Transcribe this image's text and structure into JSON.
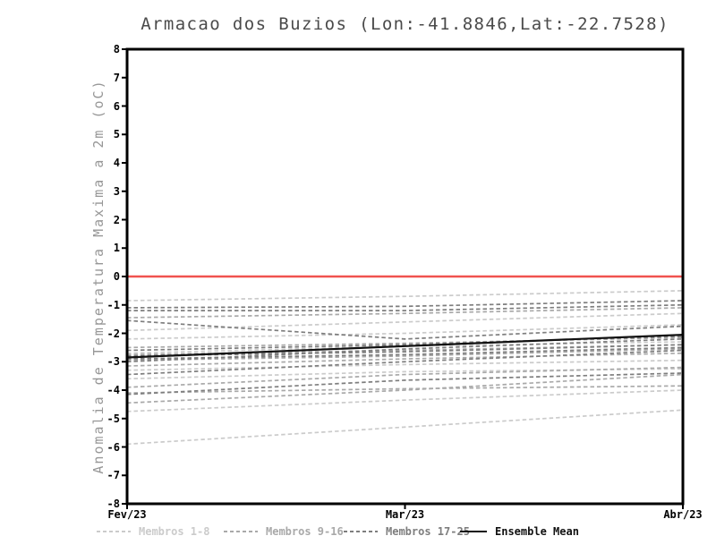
{
  "chart_data": {
    "type": "line",
    "title": "Armacao dos Buzios (Lon:-41.8846,Lat:-22.7528)",
    "ylabel": "Anomalia de Temperatura Maxima a 2m (oC)",
    "ylim": [
      -8,
      8
    ],
    "y_tick_step": 1,
    "y_tick_labels": [
      "8",
      "7",
      "6",
      "5",
      "4",
      "3",
      "2",
      "1",
      "0",
      "-1",
      "-2",
      "-3",
      "-4",
      "-5",
      "-6",
      "-7",
      "-8"
    ],
    "x_tick_labels": [
      "Fev/23",
      "Mar/23",
      "Abr/23"
    ],
    "x_tick_positions": [
      0,
      0.5,
      1
    ],
    "grid": false,
    "legend_position": "bottom",
    "axis_color": "#000000",
    "zero_line": {
      "value": 0,
      "color": "#f0524f"
    },
    "ensemble_mean": {
      "label": "Ensemble Mean",
      "color": "#111111",
      "values": [
        -2.85,
        -2.45,
        -2.05
      ]
    },
    "member_groups": [
      {
        "label": "Membros 1-8",
        "color": "#cbcbcb",
        "members": [
          [
            -0.85,
            -0.7,
            -0.5
          ],
          [
            -1.9,
            -1.6,
            -1.3
          ],
          [
            -2.2,
            -2.0,
            -1.7
          ],
          [
            -2.7,
            -2.45,
            -2.3
          ],
          [
            -3.3,
            -3.1,
            -2.95
          ],
          [
            -3.6,
            -3.35,
            -3.25
          ],
          [
            -4.75,
            -4.35,
            -4.0
          ],
          [
            -5.9,
            -5.3,
            -4.7
          ]
        ]
      },
      {
        "label": "Membros 9-16",
        "color": "#a9a9a9",
        "members": [
          [
            -1.45,
            -1.3,
            -1.1
          ],
          [
            -2.5,
            -2.35,
            -2.15
          ],
          [
            -2.75,
            -2.6,
            -2.4
          ],
          [
            -2.95,
            -2.8,
            -2.55
          ],
          [
            -3.15,
            -2.9,
            -2.7
          ],
          [
            -3.9,
            -3.45,
            -3.2
          ],
          [
            -4.45,
            -4.0,
            -3.45
          ],
          [
            -4.1,
            -3.95,
            -3.85
          ]
        ]
      },
      {
        "label": "Membros 17-25",
        "color": "#7e7e7e",
        "members": [
          [
            -1.1,
            -1.05,
            -0.85
          ],
          [
            -1.2,
            -1.2,
            -1.0
          ],
          [
            -1.55,
            -2.2,
            -1.75
          ],
          [
            -2.6,
            -2.4,
            -2.1
          ],
          [
            -2.8,
            -2.65,
            -2.4
          ],
          [
            -2.9,
            -2.75,
            -2.5
          ],
          [
            -3.0,
            -2.55,
            -2.2
          ],
          [
            -3.45,
            -3.0,
            -2.6
          ],
          [
            -4.15,
            -3.65,
            -3.4
          ]
        ]
      }
    ]
  }
}
